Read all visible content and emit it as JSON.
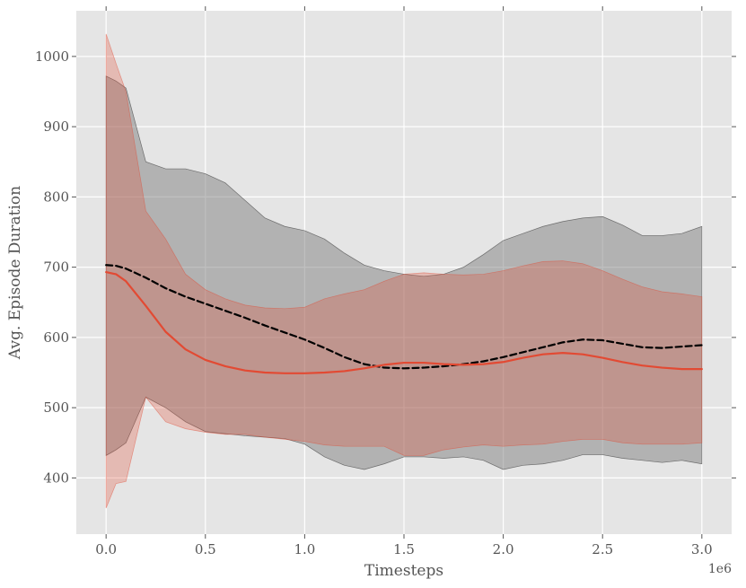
{
  "chart_data": {
    "type": "line",
    "style": "ggplot",
    "xlabel": "Timesteps",
    "ylabel": "Avg. Episode Duration",
    "x_offset_label": "1e6",
    "xlim": [
      -0.15,
      3.15
    ],
    "ylim": [
      320,
      1065
    ],
    "x_ticks": [
      0.0,
      0.5,
      1.0,
      1.5,
      2.0,
      2.5,
      3.0
    ],
    "x_tick_labels": [
      "0.0",
      "0.5",
      "1.0",
      "1.5",
      "2.0",
      "2.5",
      "3.0"
    ],
    "y_ticks": [
      400,
      500,
      600,
      700,
      800,
      900,
      1000
    ],
    "y_tick_labels": [
      "400",
      "500",
      "600",
      "700",
      "800",
      "900",
      "1000"
    ],
    "grid": true,
    "series": [
      {
        "line_style": "dashed",
        "color": "#000000",
        "band_color": "#7f7f7f",
        "x": [
          0.0,
          0.05,
          0.1,
          0.2,
          0.3,
          0.4,
          0.5,
          0.6,
          0.7,
          0.8,
          0.9,
          1.0,
          1.1,
          1.2,
          1.3,
          1.4,
          1.5,
          1.6,
          1.7,
          1.8,
          1.9,
          2.0,
          2.1,
          2.2,
          2.3,
          2.4,
          2.5,
          2.6,
          2.7,
          2.8,
          2.9,
          3.0
        ],
        "mean": [
          703,
          702,
          698,
          685,
          670,
          658,
          648,
          638,
          628,
          617,
          607,
          597,
          585,
          572,
          562,
          557,
          556,
          557,
          559,
          562,
          566,
          572,
          579,
          586,
          593,
          597,
          596,
          591,
          586,
          585,
          587,
          589
        ],
        "upper": [
          972,
          965,
          955,
          850,
          840,
          840,
          833,
          820,
          795,
          770,
          758,
          752,
          740,
          720,
          703,
          695,
          690,
          687,
          690,
          700,
          718,
          738,
          748,
          758,
          765,
          770,
          772,
          760,
          745,
          745,
          748,
          758
        ],
        "lower": [
          432,
          440,
          450,
          515,
          500,
          480,
          466,
          463,
          460,
          458,
          456,
          448,
          430,
          418,
          412,
          420,
          430,
          430,
          428,
          430,
          425,
          412,
          418,
          420,
          425,
          433,
          433,
          428,
          425,
          422,
          425,
          420
        ]
      },
      {
        "line_style": "solid",
        "color": "#e24a33",
        "band_color": "#e24a33",
        "x": [
          0.0,
          0.05,
          0.1,
          0.2,
          0.3,
          0.4,
          0.5,
          0.6,
          0.7,
          0.8,
          0.9,
          1.0,
          1.1,
          1.2,
          1.3,
          1.4,
          1.5,
          1.6,
          1.7,
          1.8,
          1.9,
          2.0,
          2.1,
          2.2,
          2.3,
          2.4,
          2.5,
          2.6,
          2.7,
          2.8,
          2.9,
          3.0
        ],
        "mean": [
          693,
          690,
          680,
          645,
          608,
          583,
          568,
          559,
          553,
          550,
          549,
          549,
          550,
          552,
          556,
          561,
          564,
          564,
          562,
          561,
          562,
          565,
          571,
          576,
          578,
          576,
          571,
          565,
          560,
          557,
          555,
          555
        ],
        "upper": [
          1032,
          990,
          950,
          780,
          740,
          690,
          668,
          655,
          646,
          642,
          641,
          643,
          655,
          662,
          668,
          680,
          690,
          692,
          690,
          689,
          690,
          695,
          702,
          708,
          709,
          705,
          695,
          683,
          672,
          665,
          662,
          658
        ],
        "lower": [
          357,
          392,
          395,
          515,
          480,
          470,
          465,
          462,
          462,
          458,
          455,
          452,
          447,
          445,
          445,
          445,
          432,
          432,
          440,
          444,
          447,
          445,
          447,
          448,
          452,
          455,
          455,
          450,
          448,
          448,
          448,
          450
        ]
      }
    ]
  }
}
